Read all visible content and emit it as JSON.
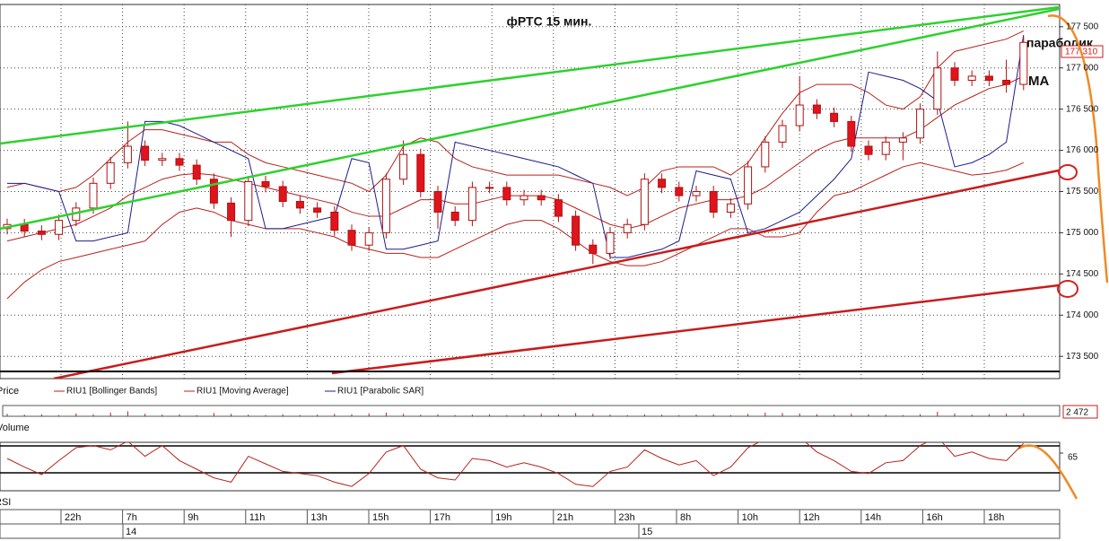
{
  "chart_data": [
    {
      "type": "candlestick",
      "title": "фРТС   15 мин.",
      "annotations": [
        "параболик",
        "MA"
      ],
      "last_label": "177 310",
      "candles": {
        "name": "Price",
        "up_color": "#ffffff",
        "down_color": "#e0141c",
        "edge_color": "#b01010",
        "open": [
          175050,
          175100,
          175020,
          174980,
          175150,
          175300,
          175600,
          175850,
          176050,
          175880,
          175900,
          175820,
          175650,
          175360,
          175150,
          175620,
          175560,
          175380,
          175300,
          175250,
          175030,
          174850,
          175000,
          175650,
          175950,
          175500,
          175250,
          175150,
          175550,
          175550,
          175400,
          175450,
          175400,
          175200,
          174850,
          174750,
          175000,
          175100,
          175650,
          175550,
          175450,
          175500,
          175250,
          175350,
          175800,
          176100,
          176300,
          176550,
          176450,
          176350,
          176050,
          175950,
          176100,
          176150,
          176500,
          177000,
          176850,
          176900,
          176850,
          176800
        ],
        "high": [
          175170,
          175170,
          175090,
          175220,
          175370,
          175670,
          175920,
          176350,
          176120,
          175970,
          175970,
          175890,
          175720,
          175430,
          175690,
          175690,
          175630,
          175450,
          175370,
          175320,
          175100,
          175070,
          175720,
          176120,
          176020,
          175570,
          175320,
          175620,
          175620,
          175620,
          175520,
          175520,
          175470,
          175270,
          174920,
          175070,
          175170,
          175720,
          175720,
          175620,
          175570,
          175570,
          175420,
          175870,
          176170,
          176370,
          176900,
          176620,
          176520,
          176420,
          176120,
          176170,
          176220,
          176570,
          177200,
          177070,
          176970,
          176970,
          177100,
          177380
        ],
        "low": [
          174980,
          174950,
          174910,
          174910,
          175080,
          175230,
          175530,
          175780,
          175810,
          175810,
          175750,
          175580,
          175290,
          174950,
          175080,
          175490,
          175310,
          175230,
          175180,
          174960,
          174780,
          174780,
          174930,
          175580,
          175430,
          175050,
          175080,
          175080,
          175480,
          175330,
          175330,
          175330,
          175130,
          174780,
          174620,
          174680,
          174930,
          175030,
          175480,
          175380,
          175380,
          175180,
          175180,
          175280,
          175730,
          176030,
          176230,
          176380,
          176280,
          175980,
          175880,
          175880,
          175880,
          176080,
          176430,
          176780,
          176780,
          176780,
          176700,
          176730
        ],
        "close": [
          175100,
          175020,
          174980,
          175150,
          175300,
          175600,
          175850,
          176050,
          175880,
          175900,
          175820,
          175650,
          175360,
          175150,
          175620,
          175560,
          175380,
          175300,
          175250,
          175030,
          174850,
          175000,
          175650,
          175950,
          175500,
          175250,
          175150,
          175550,
          175550,
          175400,
          175450,
          175400,
          175200,
          174850,
          174750,
          175000,
          175100,
          175650,
          175550,
          175450,
          175500,
          175250,
          175350,
          175800,
          176100,
          176300,
          176550,
          176450,
          176350,
          176050,
          175950,
          176100,
          176150,
          176500,
          177000,
          176850,
          176900,
          176850,
          176800,
          177310
        ]
      },
      "series": [
        {
          "name": "RIU1 [Bollinger Bands]",
          "color": "#b8221c",
          "upper": [
            175550,
            175600,
            175550,
            175500,
            175550,
            175700,
            175900,
            176100,
            176250,
            176250,
            176200,
            176150,
            176100,
            176100,
            175950,
            175850,
            175800,
            175750,
            175700,
            175650,
            175600,
            175500,
            175700,
            176050,
            176150,
            176100,
            175900,
            175800,
            175750,
            175700,
            175700,
            175700,
            175700,
            175650,
            175600,
            175550,
            175450,
            175550,
            175750,
            175800,
            175800,
            175800,
            175700,
            175850,
            176150,
            176450,
            176700,
            176800,
            176800,
            176800,
            176700,
            176550,
            176500,
            176650,
            177000,
            177200,
            177250,
            177300,
            177350,
            177450
          ],
          "lower": [
            174200,
            174400,
            174550,
            174650,
            174700,
            174750,
            174800,
            174850,
            174900,
            175100,
            175250,
            175300,
            175250,
            175150,
            175100,
            175050,
            175050,
            175050,
            175000,
            174950,
            174850,
            174800,
            174750,
            174750,
            174700,
            174700,
            174800,
            174900,
            175000,
            175100,
            175150,
            175150,
            175050,
            174900,
            174750,
            174650,
            174600,
            174600,
            174650,
            174750,
            174850,
            174950,
            175050,
            175050,
            174950,
            174950,
            175000,
            175250,
            175450,
            175500,
            175600,
            175700,
            175800,
            175850,
            175800,
            175750,
            175700,
            175720,
            175760,
            175850
          ]
        },
        {
          "name": "RIU1 [Moving Average]",
          "color": "#b8221c",
          "values": [
            174900,
            174950,
            175000,
            175050,
            175100,
            175200,
            175300,
            175450,
            175550,
            175650,
            175700,
            175720,
            175700,
            175650,
            175600,
            175550,
            175500,
            175450,
            175400,
            175350,
            175250,
            175200,
            175200,
            175300,
            175400,
            175400,
            175350,
            175350,
            175400,
            175450,
            175450,
            175450,
            175400,
            175300,
            175200,
            175100,
            175050,
            175100,
            175200,
            175300,
            175350,
            175400,
            175400,
            175450,
            175550,
            175700,
            175850,
            176000,
            176100,
            176150,
            176150,
            176150,
            176150,
            176250,
            176400,
            176550,
            176650,
            176750,
            176800,
            176900
          ]
        },
        {
          "name": "RIU1 [Parabolic SAR]",
          "color": "#1c1c8c",
          "values": [
            175600,
            175600,
            175550,
            175500,
            174900,
            174900,
            174950,
            175000,
            176350,
            176350,
            176300,
            176200,
            176100,
            176000,
            175900,
            175050,
            175050,
            175100,
            175150,
            175200,
            175900,
            175850,
            174800,
            174800,
            174850,
            174900,
            176100,
            176050,
            176000,
            175950,
            175900,
            175850,
            175800,
            175700,
            175600,
            174700,
            174700,
            174750,
            174800,
            174900,
            175750,
            175700,
            175650,
            175000,
            175050,
            175150,
            175250,
            175450,
            175650,
            175900,
            176950,
            176900,
            176850,
            176750,
            176600,
            175800,
            175850,
            175950,
            176100,
            177400
          ]
        }
      ],
      "ylim": [
        173230,
        177770
      ],
      "yticks": [
        {
          "value": 173500,
          "label": "173 500"
        },
        {
          "value": 174000,
          "label": "174 000"
        },
        {
          "value": 174500,
          "label": "174 500"
        },
        {
          "value": 175000,
          "label": "175 000"
        },
        {
          "value": 175500,
          "label": "175 500"
        },
        {
          "value": 176000,
          "label": "176 000"
        },
        {
          "value": 176500,
          "label": "176 500"
        },
        {
          "value": 177000,
          "label": "177 000"
        },
        {
          "value": 177500,
          "label": "177 500"
        }
      ],
      "x_labels": [
        "22h",
        "7h",
        "9h",
        "11h",
        "13h",
        "15h",
        "17h",
        "19h",
        "21h",
        "23h",
        "8h",
        "10h",
        "12h",
        "14h",
        "16h",
        "18h"
      ],
      "date_labels": [
        "14",
        "15"
      ],
      "grid": true
    },
    {
      "type": "bar",
      "name": "Volume",
      "color": "#b8221c",
      "values": [
        600,
        400,
        500,
        300,
        700,
        500,
        900,
        1200,
        600,
        400,
        500,
        300,
        800,
        600,
        400,
        300,
        500,
        300,
        400,
        600,
        500,
        700,
        900,
        600,
        400,
        500,
        300,
        400,
        500,
        300,
        400,
        600,
        500,
        800,
        600,
        400,
        300,
        500,
        400,
        300,
        400,
        500,
        300,
        600,
        900,
        800,
        700,
        500,
        400,
        600,
        500,
        400,
        300,
        500,
        1100,
        700,
        400,
        500,
        600,
        700
      ],
      "ylim": [
        0,
        2600
      ],
      "yticks": [
        {
          "value": 2472,
          "label": "2 472"
        }
      ]
    },
    {
      "type": "line",
      "name": "RSI",
      "color": "#b8221c",
      "values": [
        60,
        52,
        45,
        58,
        70,
        72,
        68,
        76,
        62,
        72,
        58,
        50,
        42,
        38,
        62,
        55,
        48,
        46,
        44,
        38,
        34,
        46,
        66,
        72,
        50,
        42,
        40,
        60,
        58,
        52,
        56,
        52,
        46,
        36,
        34,
        48,
        52,
        68,
        60,
        54,
        58,
        44,
        52,
        70,
        78,
        76,
        80,
        66,
        58,
        48,
        46,
        56,
        58,
        72,
        80,
        62,
        66,
        60,
        58,
        74
      ],
      "ylim": [
        30,
        75
      ],
      "yticks": [
        65
      ]
    }
  ]
}
